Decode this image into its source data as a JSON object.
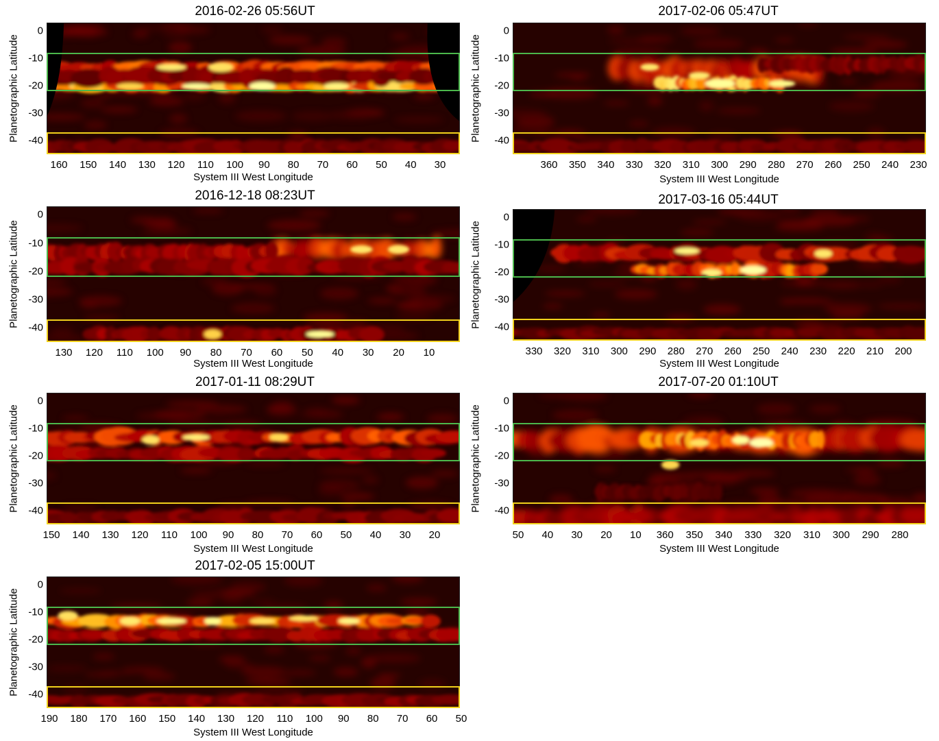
{
  "figure": {
    "y_axis_label": "Planetographic Latitude",
    "x_axis_label": "System III West Longitude",
    "y_ticks": [
      "0",
      "-10",
      "-20",
      "-30",
      "-40"
    ],
    "colors": {
      "green_box": "#4cb84c",
      "yellow_box": "#f2d21b",
      "map_dark": "#260200",
      "map_bright": "#fff6c8"
    },
    "panels": [
      {
        "title": "2016-02-26 05:56UT",
        "x_ticks": [
          "160",
          "150",
          "140",
          "130",
          "120",
          "110",
          "100",
          "90",
          "80",
          "70",
          "60",
          "50",
          "40",
          "30"
        ],
        "green_box_latitude": [
          -8,
          -22
        ],
        "yellow_box_latitude": [
          -37,
          -45
        ],
        "features": "bright continuous narrow bands near -13 and -20; dark limb at both edges"
      },
      {
        "title": "2017-02-06 05:47UT",
        "x_ticks": [
          "360",
          "350",
          "340",
          "330",
          "320",
          "310",
          "300",
          "290",
          "280",
          "270",
          "260",
          "250",
          "240",
          "230"
        ],
        "green_box_latitude": [
          -8,
          -22
        ],
        "yellow_box_latitude": [
          -37,
          -45
        ],
        "features": "bright outbreak plume near 320-270"
      },
      {
        "title": "2016-12-18 08:23UT",
        "x_ticks": [
          "130",
          "120",
          "110",
          "100",
          "90",
          "80",
          "70",
          "60",
          "50",
          "40",
          "30",
          "20",
          "10"
        ],
        "green_box_latitude": [
          -8,
          -22
        ],
        "yellow_box_latitude": [
          -37,
          -45
        ],
        "features": "bright band near -12 around 50-20; bright spot near -42 at 50"
      },
      {
        "title": "2017-03-16 05:44UT",
        "x_ticks": [
          "330",
          "320",
          "310",
          "300",
          "290",
          "280",
          "270",
          "260",
          "250",
          "240",
          "230",
          "220",
          "210",
          "200"
        ],
        "green_box_latitude": [
          -8,
          -22
        ],
        "yellow_box_latitude": [
          -37,
          -45
        ],
        "features": "dark limb on left; bright band near -19 around 270-240"
      },
      {
        "title": "2017-01-11 08:29UT",
        "x_ticks": [
          "150",
          "140",
          "130",
          "120",
          "110",
          "100",
          "90",
          "80",
          "70",
          "60",
          "50",
          "40",
          "30",
          "20"
        ],
        "green_box_latitude": [
          -8,
          -22
        ],
        "yellow_box_latitude": [
          -37,
          -45
        ],
        "features": "bright spots near -13 at 95 and 72"
      },
      {
        "title": "2017-07-20 01:10UT",
        "x_ticks": [
          "50",
          "40",
          "30",
          "20",
          "10",
          "360",
          "350",
          "340",
          "330",
          "320",
          "310",
          "300",
          "290",
          "280"
        ],
        "green_box_latitude": [
          -8,
          -22
        ],
        "yellow_box_latitude": [
          -37,
          -45
        ],
        "features": "noisy map; wide bright band near -14 from 360 to 310"
      },
      {
        "title": "2017-02-05 15:00UT",
        "x_ticks": [
          "190",
          "180",
          "170",
          "160",
          "150",
          "140",
          "130",
          "120",
          "110",
          "100",
          "90",
          "80",
          "70",
          "60",
          "50"
        ],
        "green_box_latitude": [
          -8,
          -22
        ],
        "yellow_box_latitude": [
          -37,
          -45
        ],
        "features": "bright beaded band near -13 across most longitudes"
      }
    ]
  }
}
